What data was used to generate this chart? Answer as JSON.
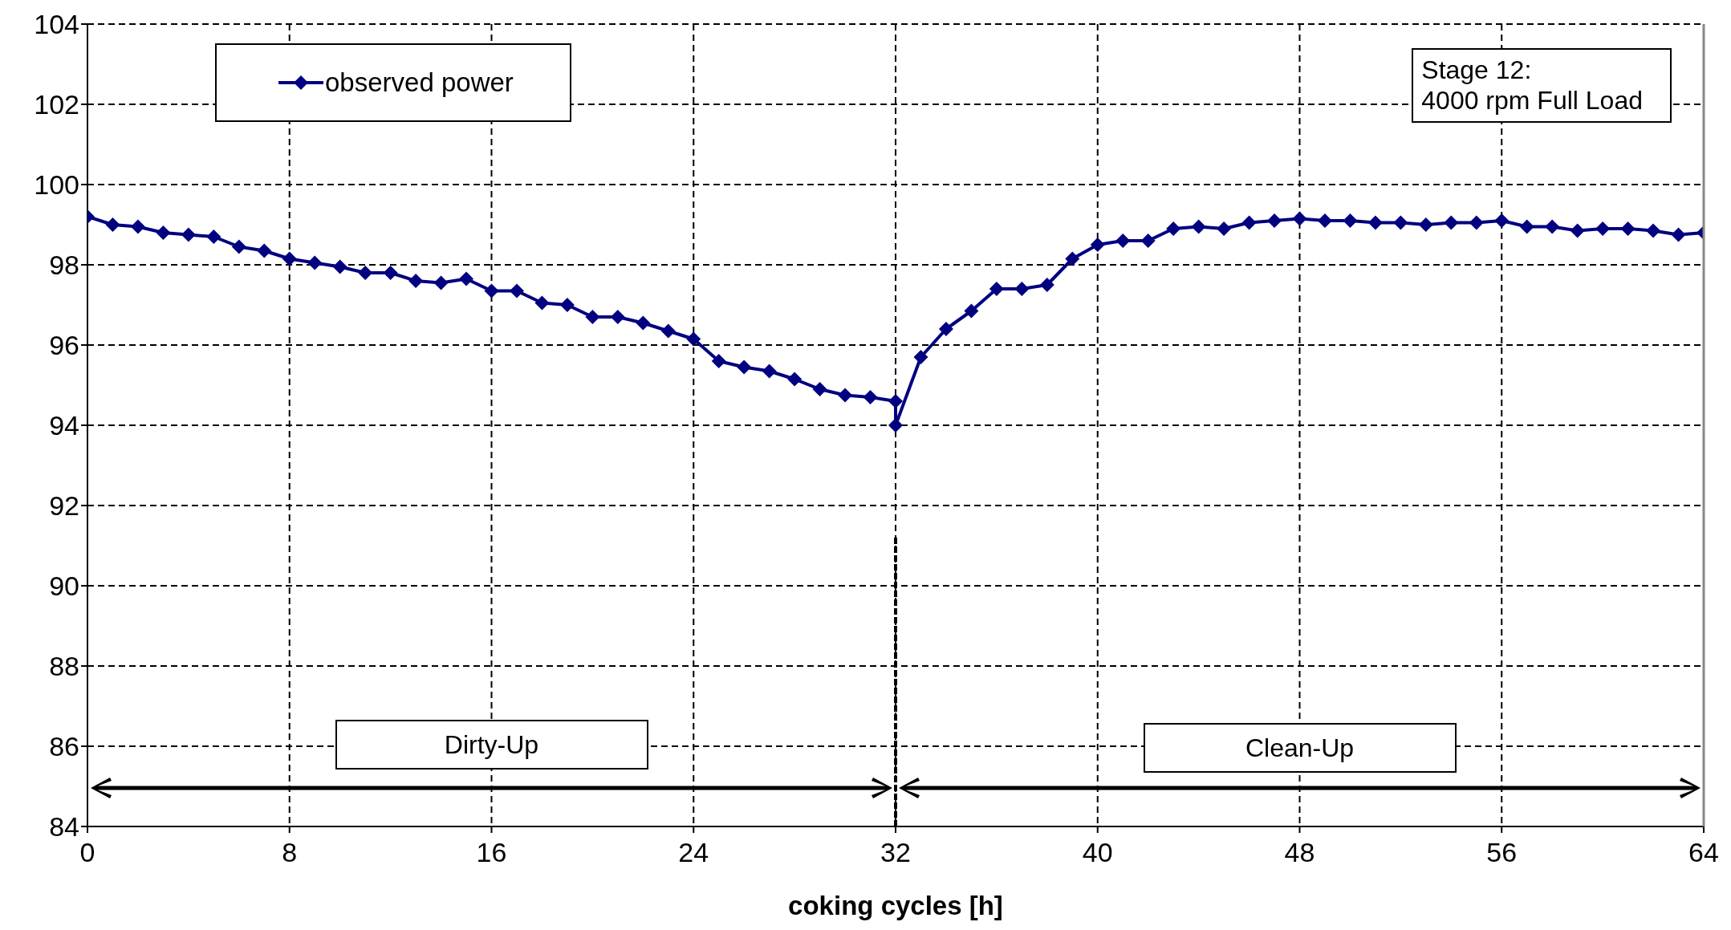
{
  "chart_data": {
    "type": "line",
    "xlabel": "coking cycles [h]",
    "x": [
      0,
      1,
      2,
      3,
      4,
      5,
      6,
      7,
      8,
      9,
      10,
      11,
      12,
      13,
      14,
      15,
      16,
      17,
      18,
      19,
      20,
      21,
      22,
      23,
      24,
      25,
      26,
      27,
      28,
      29,
      30,
      31,
      32,
      32,
      33,
      34,
      35,
      36,
      37,
      38,
      39,
      40,
      41,
      42,
      43,
      44,
      45,
      46,
      47,
      48,
      49,
      50,
      51,
      52,
      53,
      54,
      55,
      56,
      57,
      58,
      59,
      60,
      61,
      62,
      63,
      64
    ],
    "series": [
      {
        "name": "observed power",
        "color": "#000080",
        "values": [
          99.2,
          99.0,
          98.95,
          98.8,
          98.75,
          98.7,
          98.45,
          98.35,
          98.15,
          98.05,
          97.95,
          97.8,
          97.8,
          97.6,
          97.55,
          97.65,
          97.35,
          97.35,
          97.05,
          97.0,
          96.7,
          96.7,
          96.55,
          96.35,
          96.15,
          95.6,
          95.45,
          95.35,
          95.15,
          94.9,
          94.75,
          94.7,
          94.6,
          94.0,
          95.7,
          96.4,
          96.85,
          97.4,
          97.4,
          97.5,
          98.15,
          98.5,
          98.6,
          98.6,
          98.9,
          98.95,
          98.9,
          99.05,
          99.1,
          99.15,
          99.1,
          99.1,
          99.05,
          99.05,
          99.0,
          99.05,
          99.05,
          99.1,
          98.95,
          98.95,
          98.85,
          98.9,
          98.9,
          98.85,
          98.75,
          98.8
        ]
      }
    ],
    "xlim": [
      0,
      64
    ],
    "xticks": [
      0,
      8,
      16,
      24,
      32,
      40,
      48,
      56,
      64
    ],
    "ylim": [
      84,
      104
    ],
    "yticks": [
      84,
      86,
      88,
      90,
      92,
      94,
      96,
      98,
      100,
      102,
      104
    ],
    "annotations": [
      "Stage 12:\n4000 rpm Full Load",
      "Dirty-Up",
      "Clean-Up"
    ],
    "grid": true,
    "legend": "top left",
    "marker": "diamond",
    "line_style": "solid"
  }
}
